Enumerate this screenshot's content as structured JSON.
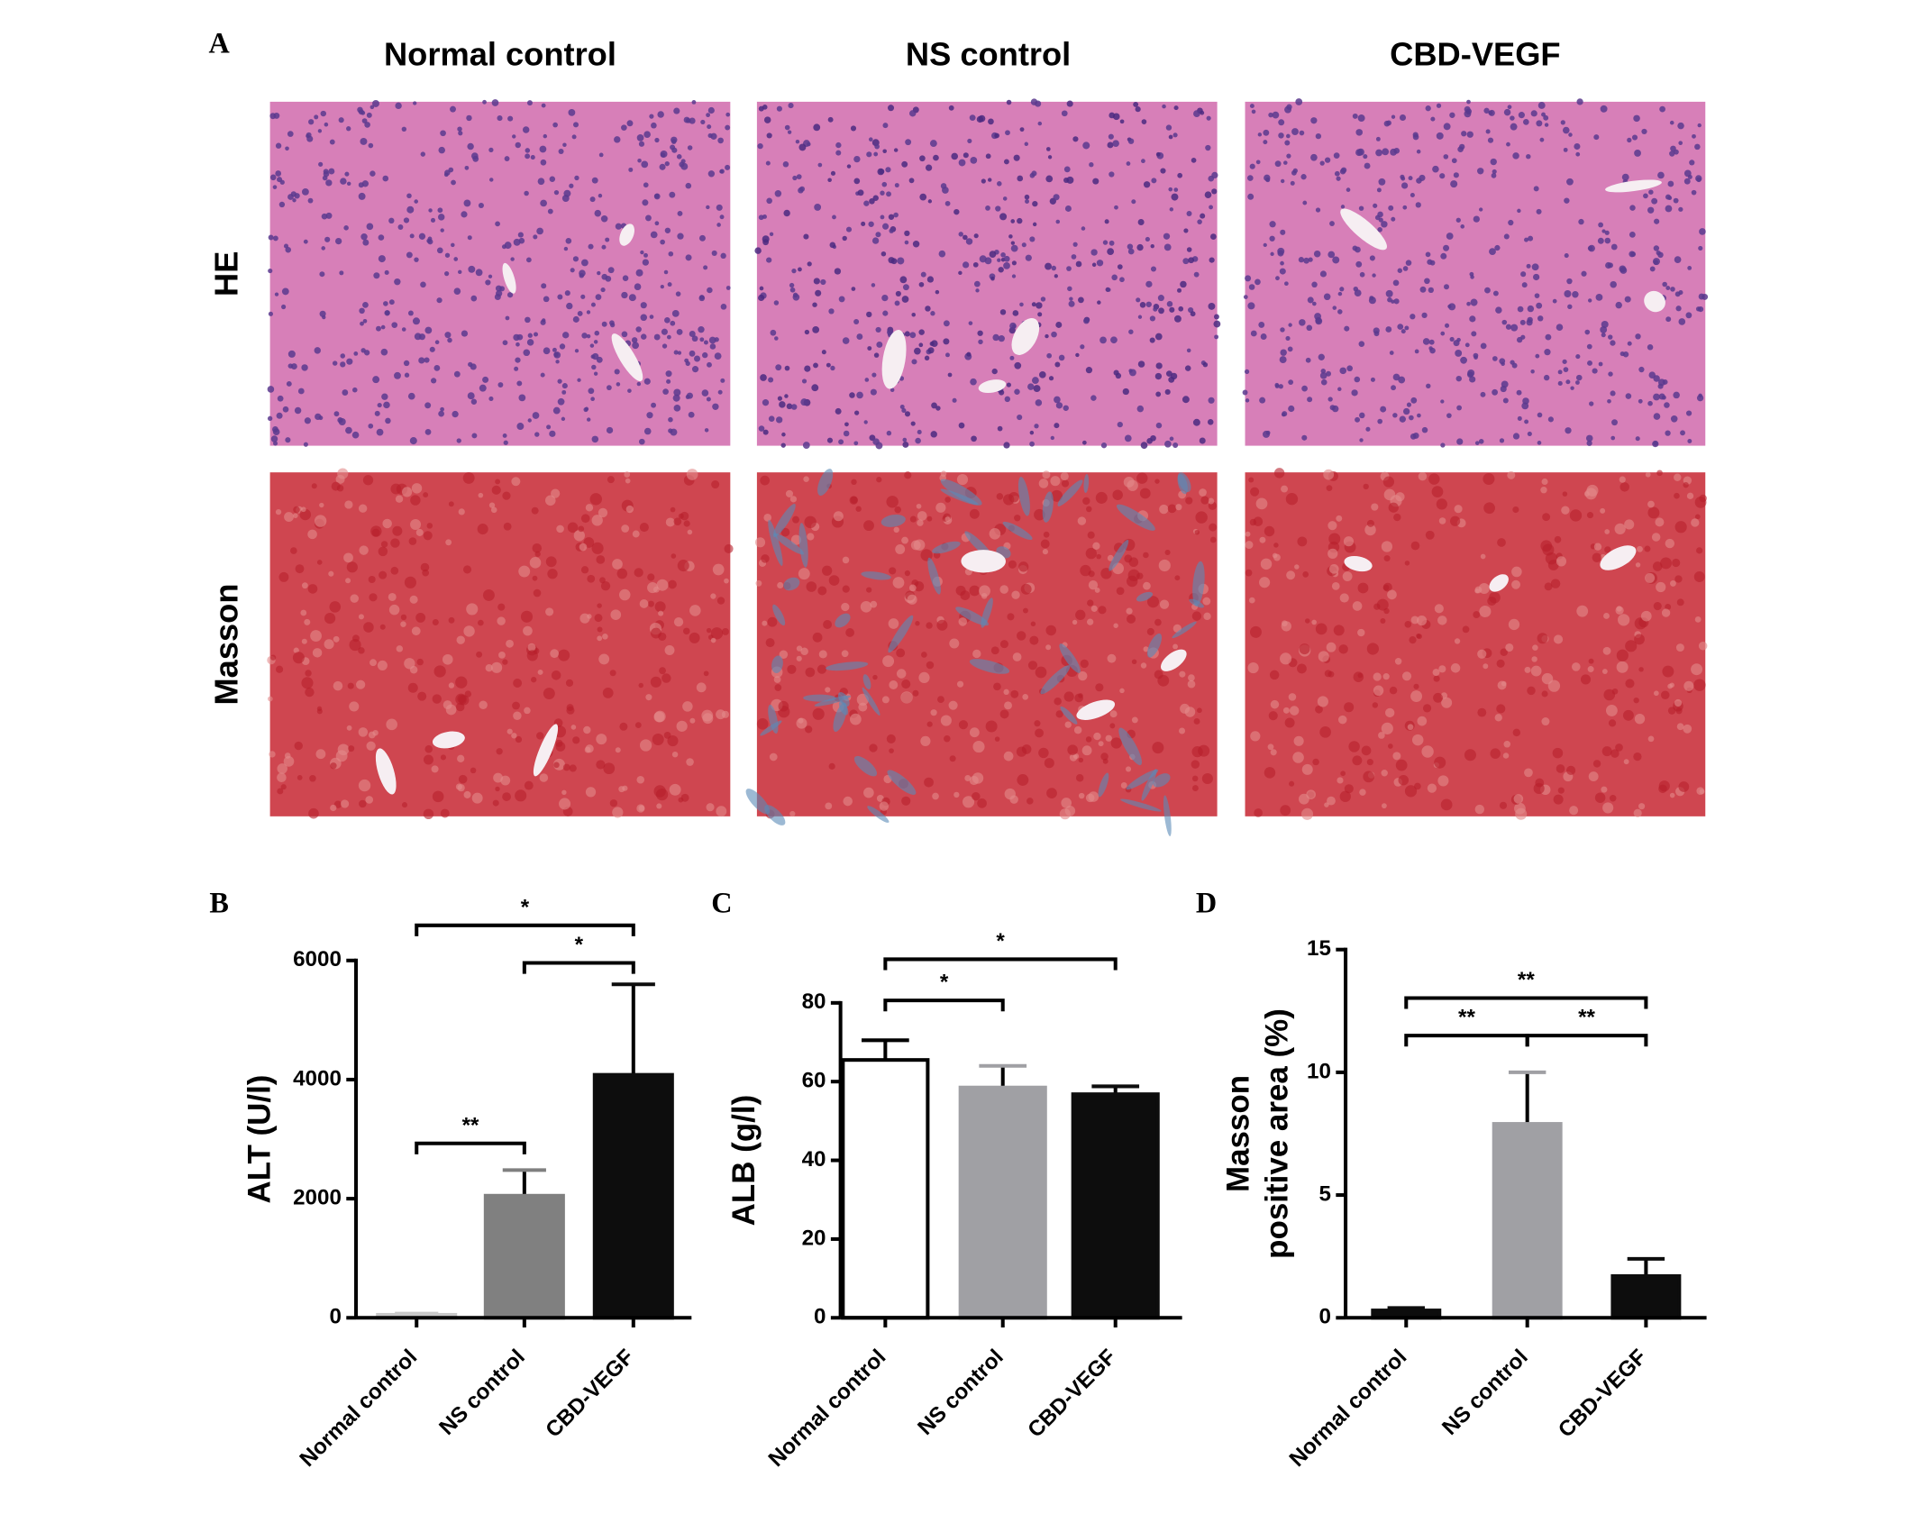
{
  "panel_a": {
    "label": "A",
    "columns": [
      "Normal control",
      "NS control",
      "CBD-VEGF"
    ],
    "rows": [
      "HE",
      "Masson"
    ]
  },
  "chart_data": [
    {
      "type": "bar",
      "panel_label": "B",
      "ylabel": [
        "ALT (U/l)"
      ],
      "categories": [
        "Normal control",
        "NS control",
        "CBD-VEGF"
      ],
      "values": [
        50,
        2050,
        4080
      ],
      "errors": [
        20,
        430,
        1520
      ],
      "colors": [
        "#c8c8c8",
        "#808080",
        "#0d0d0d"
      ],
      "ylim": [
        0,
        6000
      ],
      "yticks": [
        0,
        2000,
        4000,
        6000
      ],
      "annotations": [
        {
          "label": "**",
          "between": [
            "Normal control",
            "NS control"
          ]
        },
        {
          "label": "*",
          "between": [
            "NS control",
            "CBD-VEGF"
          ]
        },
        {
          "label": "*",
          "between": [
            "Normal control",
            "CBD-VEGF"
          ]
        }
      ]
    },
    {
      "type": "bar",
      "panel_label": "C",
      "ylabel": [
        "ALB (g/l)"
      ],
      "categories": [
        "Normal control",
        "NS control",
        "CBD-VEGF"
      ],
      "values": [
        65.5,
        58.5,
        56.8
      ],
      "errors": [
        5,
        5.5,
        2
      ],
      "colors": [
        "#ffffff",
        "#a0a0a4",
        "#0d0d0d"
      ],
      "ylim": [
        0,
        80
      ],
      "yticks": [
        0,
        20,
        40,
        60,
        80
      ],
      "annotations": [
        {
          "label": "*",
          "between": [
            "Normal control",
            "NS control"
          ]
        },
        {
          "label": "*",
          "between": [
            "Normal control",
            "CBD-VEGF"
          ]
        }
      ]
    },
    {
      "type": "bar",
      "panel_label": "D",
      "ylabel": [
        "Masson",
        "positive area (%)"
      ],
      "categories": [
        "Normal control",
        "NS control",
        "CBD-VEGF"
      ],
      "values": [
        0.3,
        7.9,
        1.7
      ],
      "errors": [
        0.1,
        2.1,
        0.7
      ],
      "colors": [
        "#0d0d0d",
        "#a0a0a4",
        "#0d0d0d"
      ],
      "ylim": [
        0,
        15
      ],
      "yticks": [
        0,
        5,
        10,
        15
      ],
      "annotations": [
        {
          "label": "**",
          "between": [
            "Normal control",
            "NS control"
          ]
        },
        {
          "label": "**",
          "between": [
            "NS control",
            "CBD-VEGF"
          ]
        },
        {
          "label": "**",
          "between": [
            "Normal control",
            "CBD-VEGF"
          ]
        }
      ]
    }
  ]
}
